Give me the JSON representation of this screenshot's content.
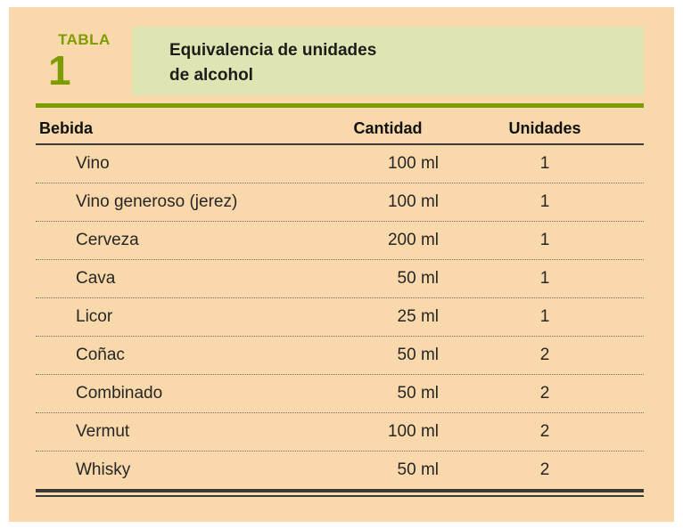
{
  "header": {
    "label": "TABLA",
    "number": "1",
    "title_line1": "Equivalencia de unidades",
    "title_line2": "de alcohol"
  },
  "columns": [
    "Bebida",
    "Cantidad",
    "Unidades"
  ],
  "rows": [
    {
      "bebida": "Vino",
      "cantidad": "100 ml",
      "unidades": "1"
    },
    {
      "bebida": "Vino generoso (jerez)",
      "cantidad": "100 ml",
      "unidades": "1"
    },
    {
      "bebida": "Cerveza",
      "cantidad": "200 ml",
      "unidades": "1"
    },
    {
      "bebida": "Cava",
      "cantidad": "50 ml",
      "unidades": "1"
    },
    {
      "bebida": "Licor",
      "cantidad": "25 ml",
      "unidades": "1"
    },
    {
      "bebida": "Coñac",
      "cantidad": "50 ml",
      "unidades": "2"
    },
    {
      "bebida": "Combinado",
      "cantidad": "50 ml",
      "unidades": "2"
    },
    {
      "bebida": "Vermut",
      "cantidad": "100 ml",
      "unidades": "2"
    },
    {
      "bebida": "Whisky",
      "cantidad": "50 ml",
      "unidades": "2"
    }
  ],
  "colors": {
    "panel_bg": "#f9d8ab",
    "title_bg": "#dfe5b2",
    "accent_olive": "#7d9c00",
    "rule_dark": "#3a3a3a",
    "text": "#262626"
  }
}
